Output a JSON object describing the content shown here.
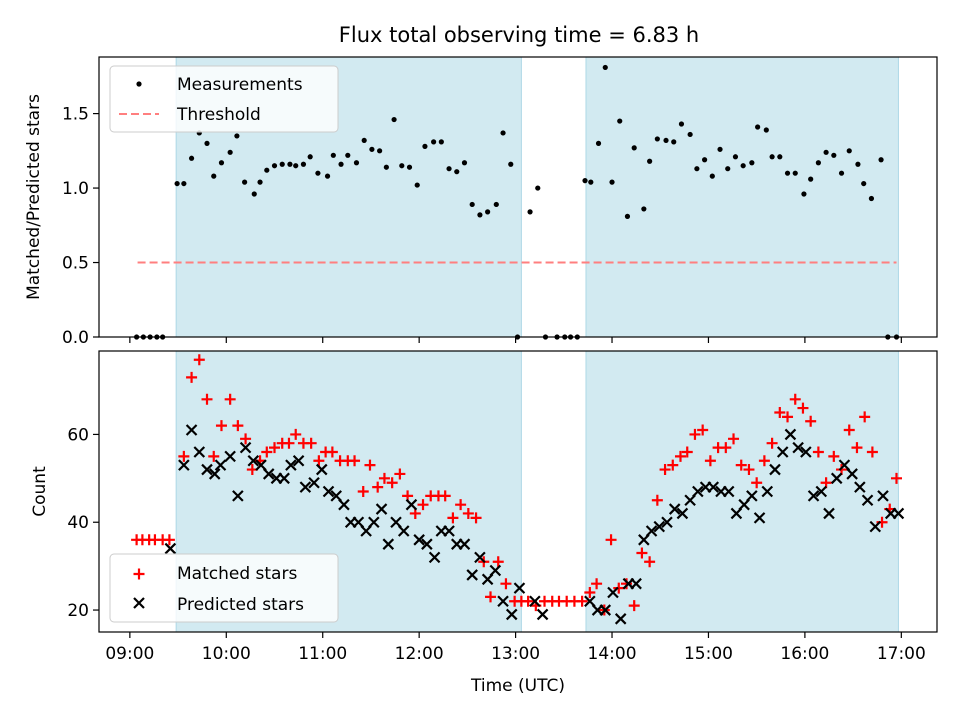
{
  "title": "Flux total observing time = 6.83 h",
  "colors": {
    "shade": "#add8e6",
    "measurement": "#000000",
    "threshold": "#ff7f7f",
    "matched": "#ff0000",
    "predicted": "#000000"
  },
  "chart_data": [
    {
      "type": "scatter",
      "panel": "top",
      "ylabel": "Matched/Predicted stars",
      "ylim": [
        0,
        1.88
      ],
      "yticks": [
        0.0,
        0.5,
        1.0,
        1.5
      ],
      "ytick_labels": [
        "0.0",
        "0.5",
        "1.0",
        "1.5"
      ],
      "legend": [
        "Measurements",
        "Threshold"
      ],
      "legend_position": "upper left",
      "threshold": {
        "name": "Threshold",
        "value": 0.5,
        "x_range": [
          9.08,
          16.95
        ]
      },
      "shaded_intervals": [
        [
          9.48,
          13.06
        ],
        [
          13.73,
          16.97
        ]
      ],
      "series": [
        {
          "name": "Measurements",
          "x": [
            9.07,
            9.14,
            9.21,
            9.28,
            9.34,
            9.49,
            9.56,
            9.64,
            9.72,
            9.8,
            9.87,
            9.95,
            10.04,
            10.11,
            10.19,
            10.29,
            10.35,
            10.42,
            10.5,
            10.58,
            10.66,
            10.72,
            10.8,
            10.87,
            10.95,
            11.05,
            11.11,
            11.19,
            11.26,
            11.35,
            11.43,
            11.51,
            11.59,
            11.66,
            11.74,
            11.82,
            11.9,
            11.98,
            12.06,
            12.15,
            12.23,
            12.31,
            12.39,
            12.47,
            12.55,
            12.63,
            12.71,
            12.8,
            12.87,
            12.95,
            13.02,
            13.15,
            13.23,
            13.31,
            13.43,
            13.51,
            13.57,
            13.64,
            13.72,
            13.78,
            13.86,
            13.93,
            14.0,
            14.08,
            14.16,
            14.23,
            14.33,
            14.39,
            14.47,
            14.56,
            14.64,
            14.72,
            14.81,
            14.88,
            14.96,
            15.04,
            15.12,
            15.2,
            15.28,
            15.36,
            15.45,
            15.51,
            15.6,
            15.66,
            15.74,
            15.82,
            15.9,
            15.99,
            16.06,
            16.14,
            16.22,
            16.3,
            16.38,
            16.46,
            16.55,
            16.61,
            16.69,
            16.79,
            16.86,
            16.95
          ],
          "y": [
            0.0,
            0.0,
            0.0,
            0.0,
            0.0,
            1.03,
            1.03,
            1.2,
            1.37,
            1.3,
            1.08,
            1.17,
            1.24,
            1.35,
            1.04,
            0.96,
            1.04,
            1.12,
            1.15,
            1.16,
            1.16,
            1.15,
            1.16,
            1.21,
            1.1,
            1.08,
            1.22,
            1.16,
            1.22,
            1.17,
            1.32,
            1.26,
            1.25,
            1.14,
            1.46,
            1.15,
            1.14,
            1.02,
            1.28,
            1.31,
            1.31,
            1.13,
            1.11,
            1.17,
            0.89,
            0.82,
            0.84,
            0.89,
            1.37,
            1.16,
            0.0,
            0.84,
            1.0,
            0.0,
            0.0,
            0.0,
            0.0,
            0.0,
            1.05,
            1.04,
            1.3,
            1.81,
            1.04,
            1.45,
            0.81,
            1.27,
            0.86,
            1.18,
            1.33,
            1.32,
            1.31,
            1.43,
            1.36,
            1.13,
            1.19,
            1.08,
            1.26,
            1.13,
            1.21,
            1.15,
            1.17,
            1.41,
            1.39,
            1.21,
            1.21,
            1.1,
            1.1,
            0.96,
            1.06,
            1.17,
            1.24,
            1.22,
            1.1,
            1.25,
            1.16,
            1.03,
            0.93,
            1.19,
            0.0,
            0.0
          ]
        }
      ]
    },
    {
      "type": "scatter",
      "panel": "bottom",
      "xlabel": "Time (UTC)",
      "ylabel": "Count",
      "xlim": [
        8.68,
        17.37
      ],
      "xticks": [
        9,
        10,
        11,
        12,
        13,
        14,
        15,
        16,
        17
      ],
      "xtick_labels": [
        "09:00",
        "10:00",
        "11:00",
        "12:00",
        "13:00",
        "14:00",
        "15:00",
        "16:00",
        "17:00"
      ],
      "ylim": [
        15,
        79
      ],
      "yticks": [
        20,
        40,
        60
      ],
      "ytick_labels": [
        "20",
        "40",
        "60"
      ],
      "legend": [
        "Matched stars",
        "Predicted stars"
      ],
      "legend_position": "lower left",
      "shaded_intervals": [
        [
          9.48,
          13.06
        ],
        [
          13.73,
          16.97
        ]
      ],
      "series": [
        {
          "name": "Matched stars",
          "marker": "+",
          "x": [
            9.07,
            9.13,
            9.2,
            9.26,
            9.34,
            9.41,
            9.56,
            9.64,
            9.72,
            9.8,
            9.87,
            9.95,
            10.04,
            10.12,
            10.2,
            10.27,
            10.35,
            10.42,
            10.5,
            10.58,
            10.65,
            10.72,
            10.8,
            10.88,
            10.96,
            11.03,
            11.1,
            11.18,
            11.26,
            11.33,
            11.42,
            11.49,
            11.57,
            11.64,
            11.72,
            11.8,
            11.88,
            11.96,
            12.04,
            12.12,
            12.2,
            12.27,
            12.35,
            12.43,
            12.51,
            12.59,
            12.67,
            12.74,
            12.82,
            12.9,
            12.99,
            13.06,
            13.13,
            13.21,
            13.3,
            13.38,
            13.45,
            13.53,
            13.61,
            13.69,
            13.77,
            13.84,
            13.92,
            13.99,
            14.07,
            14.15,
            14.23,
            14.31,
            14.39,
            14.47,
            14.55,
            14.63,
            14.71,
            14.78,
            14.86,
            14.94,
            15.02,
            15.1,
            15.18,
            15.26,
            15.34,
            15.42,
            15.5,
            15.58,
            15.66,
            15.74,
            15.82,
            15.9,
            15.98,
            16.06,
            16.14,
            16.22,
            16.3,
            16.38,
            16.46,
            16.54,
            16.62,
            16.7,
            16.8,
            16.88,
            16.95
          ],
          "y": [
            36,
            36,
            36,
            36,
            36,
            36,
            55,
            73,
            77,
            68,
            55,
            62,
            68,
            62,
            59,
            52,
            54,
            56,
            57,
            58,
            58,
            60,
            58,
            58,
            54,
            56,
            56,
            54,
            54,
            54,
            47,
            53,
            48,
            50,
            49,
            51,
            46,
            42,
            44,
            46,
            46,
            46,
            41,
            44,
            42,
            41,
            31,
            23,
            31,
            26,
            22,
            22,
            22,
            21,
            22,
            22,
            22,
            22,
            22,
            22,
            24,
            26,
            20,
            36,
            25,
            26,
            21,
            33,
            31,
            45,
            52,
            53,
            55,
            56,
            60,
            61,
            54,
            57,
            57,
            59,
            53,
            52,
            49,
            54,
            58,
            65,
            64,
            68,
            66,
            63,
            56,
            49,
            55,
            52,
            61,
            57,
            64,
            56,
            40,
            43,
            50
          ]
        },
        {
          "name": "Predicted stars",
          "marker": "x",
          "x": [
            9.42,
            9.56,
            9.64,
            9.72,
            9.8,
            9.88,
            9.94,
            10.04,
            10.12,
            10.2,
            10.28,
            10.36,
            10.44,
            10.52,
            10.6,
            10.67,
            10.75,
            10.82,
            10.91,
            10.99,
            11.06,
            11.14,
            11.22,
            11.29,
            11.37,
            11.45,
            11.53,
            11.61,
            11.68,
            11.76,
            11.84,
            11.92,
            12.0,
            12.08,
            12.16,
            12.23,
            12.31,
            12.39,
            12.47,
            12.55,
            12.63,
            12.71,
            12.79,
            12.87,
            12.96,
            13.04,
            13.2,
            13.28,
            13.77,
            13.85,
            13.93,
            14.01,
            14.09,
            14.17,
            14.25,
            14.33,
            14.41,
            14.49,
            14.57,
            14.65,
            14.73,
            14.81,
            14.89,
            14.97,
            15.05,
            15.13,
            15.21,
            15.29,
            15.37,
            15.45,
            15.53,
            15.61,
            15.69,
            15.77,
            15.85,
            15.93,
            16.01,
            16.09,
            16.17,
            16.25,
            16.33,
            16.41,
            16.49,
            16.57,
            16.65,
            16.73,
            16.81,
            16.89,
            16.97
          ],
          "y": [
            34,
            53,
            61,
            56,
            52,
            51,
            53,
            55,
            46,
            57,
            54,
            53,
            51,
            50,
            50,
            53,
            54,
            48,
            49,
            52,
            47,
            46,
            44,
            40,
            40,
            38,
            40,
            43,
            35,
            40,
            38,
            44,
            36,
            35,
            32,
            38,
            38,
            35,
            35,
            28,
            32,
            27,
            29,
            22,
            19,
            25,
            22,
            19,
            22,
            20,
            20,
            24,
            18,
            26,
            26,
            36,
            38,
            39,
            40,
            43,
            42,
            45,
            47,
            48,
            48,
            47,
            47,
            42,
            44,
            46,
            41,
            47,
            52,
            56,
            60,
            57,
            56,
            46,
            47,
            42,
            50,
            53,
            51,
            48,
            45,
            39,
            46,
            42,
            42
          ]
        }
      ]
    }
  ]
}
